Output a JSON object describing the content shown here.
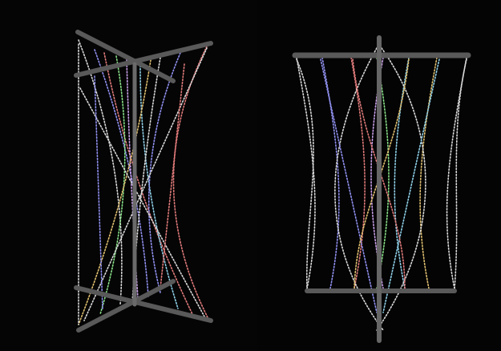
{
  "scene": {
    "background": "#040404",
    "bar_color": "#595959",
    "string_colors": [
      "#d8d8d8",
      "#9090f0",
      "#e07a7a",
      "#88e088",
      "#c9a0e8",
      "#8fd0e8",
      "#e0c070"
    ]
  },
  "left_structure": {
    "description_shape": "twisted-string-column",
    "twist": "crossed-top-and-bottom-bars"
  },
  "right_structure": {
    "description_shape": "hourglass-string-column",
    "twist": "parallel-top-and-bottom-bars"
  }
}
